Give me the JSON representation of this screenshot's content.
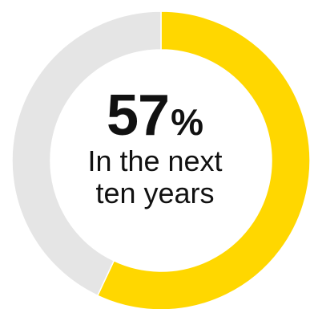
{
  "chart_data": {
    "type": "pie",
    "value": 57,
    "unit": "%",
    "label_line1": "In the next",
    "label_line2": "ten years",
    "slices": [
      {
        "value": 57,
        "color": "#FFD700"
      },
      {
        "value": 43,
        "color": "#E5E5E5"
      }
    ]
  }
}
